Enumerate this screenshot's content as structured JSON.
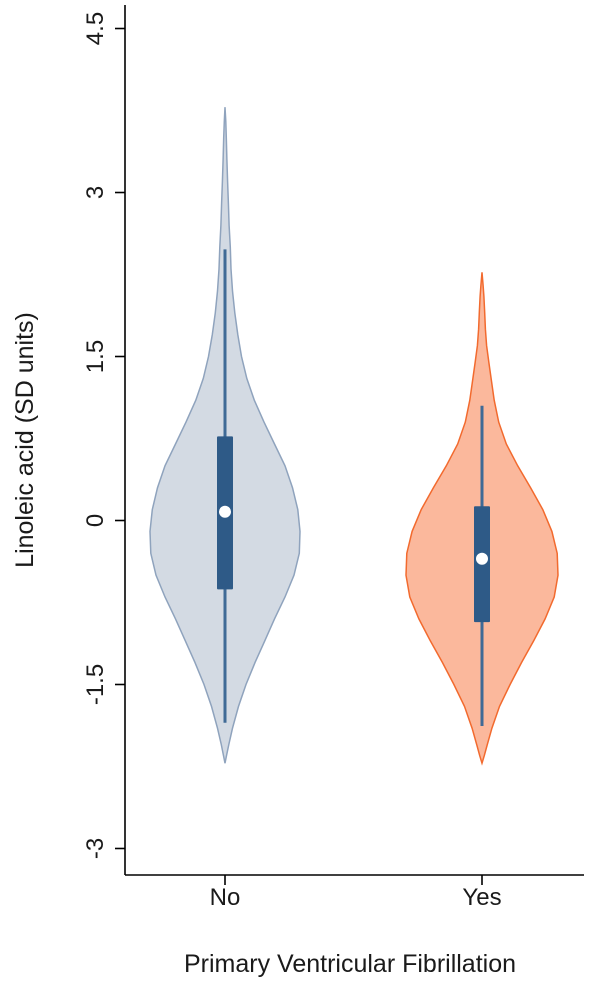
{
  "chart_data": {
    "type": "violin",
    "xlabel": "Primary Ventricular Fibrillation",
    "ylabel": "Linoleic acid (SD units)",
    "ylim": [
      -3.2,
      4.5
    ],
    "yticks": [
      {
        "value": 4.5,
        "label": "4.5"
      },
      {
        "value": 3,
        "label": "3"
      },
      {
        "value": 1.5,
        "label": "1.5"
      },
      {
        "value": 0,
        "label": "0"
      },
      {
        "value": -1.5,
        "label": "-1.5"
      },
      {
        "value": -3,
        "label": "-3"
      }
    ],
    "categories": [
      "No",
      "Yes"
    ],
    "grid": false,
    "groups": [
      {
        "category": "No",
        "fill": "#d3dae3",
        "stroke": "#8fa3bd",
        "min": -1.85,
        "q1": -0.63,
        "median": 0.08,
        "q3": 0.77,
        "max": 2.48,
        "whisker_color": "#3f6a96",
        "box_color": "#2e5a87",
        "density": [
          [
            -2.22,
            0.0
          ],
          [
            -2.15,
            0.02
          ],
          [
            -2.05,
            0.05
          ],
          [
            -1.9,
            0.1
          ],
          [
            -1.7,
            0.18
          ],
          [
            -1.5,
            0.28
          ],
          [
            -1.3,
            0.4
          ],
          [
            -1.1,
            0.53
          ],
          [
            -0.9,
            0.66
          ],
          [
            -0.7,
            0.8
          ],
          [
            -0.5,
            0.92
          ],
          [
            -0.3,
            0.99
          ],
          [
            -0.1,
            1.0
          ],
          [
            0.1,
            0.97
          ],
          [
            0.3,
            0.9
          ],
          [
            0.5,
            0.8
          ],
          [
            0.7,
            0.66
          ],
          [
            0.9,
            0.52
          ],
          [
            1.1,
            0.39
          ],
          [
            1.3,
            0.29
          ],
          [
            1.5,
            0.22
          ],
          [
            1.7,
            0.17
          ],
          [
            1.9,
            0.13
          ],
          [
            2.1,
            0.1
          ],
          [
            2.3,
            0.08
          ],
          [
            2.5,
            0.07
          ],
          [
            2.7,
            0.055
          ],
          [
            2.9,
            0.045
          ],
          [
            3.1,
            0.035
          ],
          [
            3.3,
            0.025
          ],
          [
            3.5,
            0.017
          ],
          [
            3.65,
            0.01
          ],
          [
            3.78,
            0.0
          ]
        ]
      },
      {
        "category": "Yes",
        "fill": "#fbb89c",
        "stroke": "#f26a2e",
        "min": -1.88,
        "q1": -0.93,
        "median": -0.35,
        "q3": 0.13,
        "max": 1.05,
        "whisker_color": "#3f6a96",
        "box_color": "#2e5a87",
        "density": [
          [
            -2.22,
            0.0
          ],
          [
            -2.15,
            0.03
          ],
          [
            -2.05,
            0.07
          ],
          [
            -1.9,
            0.13
          ],
          [
            -1.7,
            0.23
          ],
          [
            -1.5,
            0.37
          ],
          [
            -1.3,
            0.52
          ],
          [
            -1.1,
            0.68
          ],
          [
            -0.9,
            0.83
          ],
          [
            -0.7,
            0.95
          ],
          [
            -0.5,
            1.0
          ],
          [
            -0.3,
            0.99
          ],
          [
            -0.1,
            0.92
          ],
          [
            0.1,
            0.8
          ],
          [
            0.3,
            0.64
          ],
          [
            0.5,
            0.47
          ],
          [
            0.7,
            0.32
          ],
          [
            0.9,
            0.22
          ],
          [
            1.1,
            0.16
          ],
          [
            1.3,
            0.12
          ],
          [
            1.45,
            0.09
          ],
          [
            1.6,
            0.06
          ],
          [
            1.75,
            0.045
          ],
          [
            1.9,
            0.035
          ],
          [
            2.05,
            0.025
          ],
          [
            2.15,
            0.015
          ],
          [
            2.27,
            0.0
          ]
        ]
      }
    ]
  }
}
